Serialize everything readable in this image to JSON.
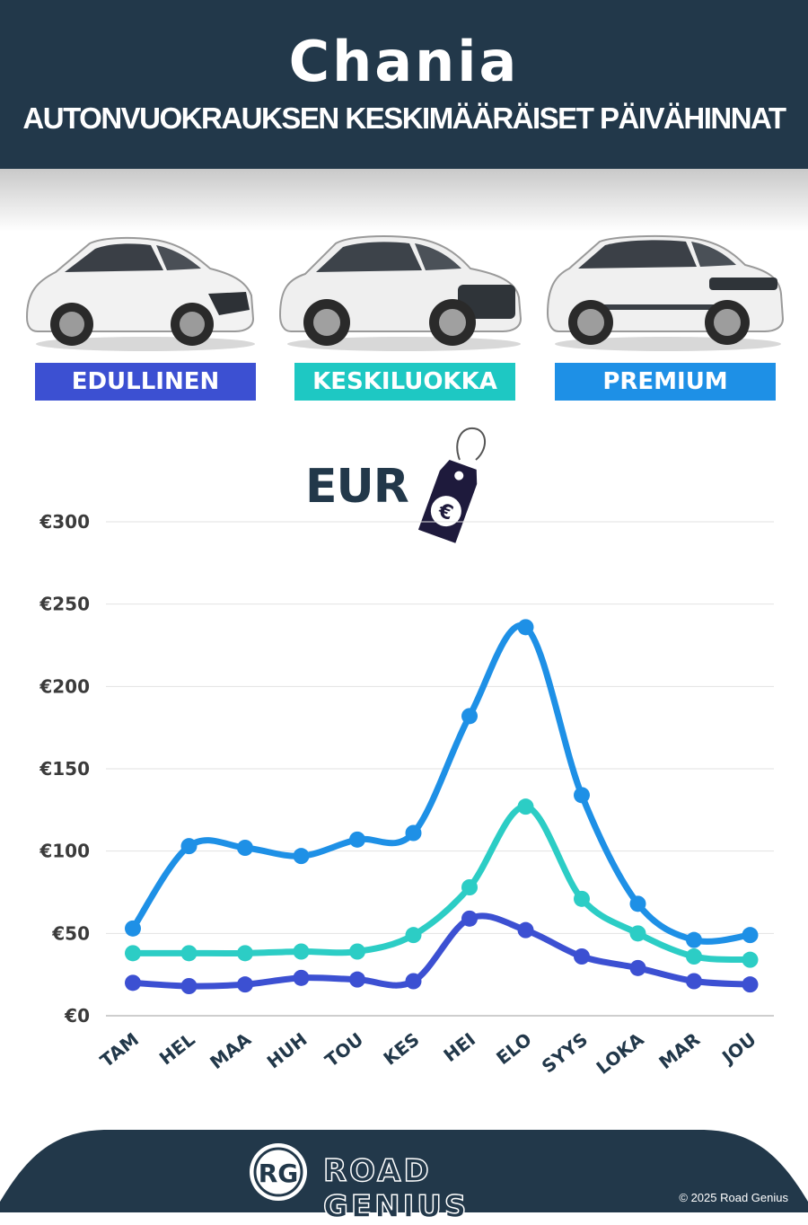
{
  "header": {
    "title": "Chania",
    "subtitle": "AUTONVUOKRAUKSEN KESKIMÄÄRÄISET PÄIVÄHINNAT"
  },
  "categories": [
    {
      "label": "EDULLINEN",
      "color": "#3c50d2"
    },
    {
      "label": "KESKILUOKKA",
      "color": "#1ec8c3"
    },
    {
      "label": "PREMIUM",
      "color": "#1e90e6"
    }
  ],
  "currency_label": "EUR",
  "currency_symbol": "€",
  "chart_data": {
    "type": "line",
    "title": "",
    "xlabel": "",
    "ylabel": "",
    "x": [
      "TAM",
      "HEL",
      "MAA",
      "HUH",
      "TOU",
      "KES",
      "HEI",
      "ELO",
      "SYYS",
      "LOKA",
      "MAR",
      "JOU"
    ],
    "ylim": [
      0,
      300
    ],
    "yticks": [
      0,
      50,
      100,
      150,
      200,
      250,
      300
    ],
    "ytick_labels": [
      "€0",
      "€50",
      "€100",
      "€150",
      "€200",
      "€250",
      "€300"
    ],
    "grid": true,
    "series": [
      {
        "name": "PREMIUM",
        "color": "#1e90e6",
        "values": [
          53,
          103,
          102,
          97,
          107,
          111,
          182,
          236,
          134,
          68,
          46,
          49
        ]
      },
      {
        "name": "KESKILUOKKA",
        "color": "#2ccdc5",
        "values": [
          38,
          38,
          38,
          39,
          39,
          49,
          78,
          127,
          71,
          50,
          36,
          34
        ]
      },
      {
        "name": "EDULLINEN",
        "color": "#3c50d2",
        "values": [
          20,
          18,
          19,
          23,
          22,
          21,
          59,
          52,
          36,
          29,
          21,
          19
        ]
      }
    ]
  },
  "footer": {
    "logo_initials": "RG",
    "brand": "ROAD GENIUS",
    "copyright": "© 2025 Road Genius",
    "background": "#22384a"
  }
}
